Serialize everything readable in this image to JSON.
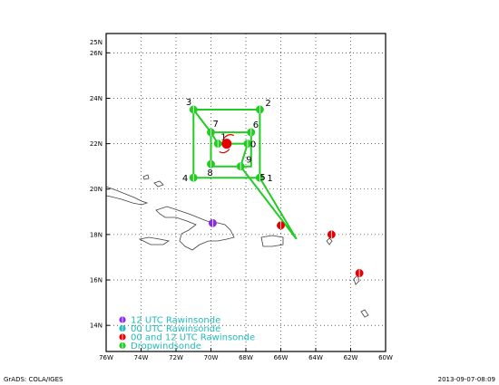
{
  "colors": {
    "frame": "#000000",
    "grid": "#000000",
    "coast": "#404040",
    "track": "#22cc22",
    "dropsonde": "#22cc22",
    "rawin_12": "#8a2be2",
    "rawin_00": "#22bbbb",
    "rawin_both": "#e60000",
    "storm_symbol": "#e60000"
  },
  "axes": {
    "x_ticks": [
      {
        "lon": -76,
        "label": "76W"
      },
      {
        "lon": -74,
        "label": "74W"
      },
      {
        "lon": -72,
        "label": "72W"
      },
      {
        "lon": -70,
        "label": "70W"
      },
      {
        "lon": -68,
        "label": "68W"
      },
      {
        "lon": -66,
        "label": "66W"
      },
      {
        "lon": -64,
        "label": "64W"
      },
      {
        "lon": -62,
        "label": "62W"
      },
      {
        "lon": -60,
        "label": "60W"
      }
    ],
    "y_ticks": [
      {
        "lat": 14,
        "label": "14N"
      },
      {
        "lat": 16,
        "label": "16N"
      },
      {
        "lat": 18,
        "label": "18N"
      },
      {
        "lat": 20,
        "label": "20N"
      },
      {
        "lat": 22,
        "label": "22N"
      },
      {
        "lat": 24,
        "label": "24N"
      },
      {
        "lat": 26,
        "label": "26N"
      }
    ],
    "y_top_label": "25N"
  },
  "dropsondes": [
    {
      "lon": -71.0,
      "lat": 23.5,
      "label": "3"
    },
    {
      "lon": -67.2,
      "lat": 23.5,
      "label": "2"
    },
    {
      "lon": -70.0,
      "lat": 22.5,
      "label": "7"
    },
    {
      "lon": -67.7,
      "lat": 22.5,
      "label": "6"
    },
    {
      "lon": -69.6,
      "lat": 22.0,
      "label": "1"
    },
    {
      "lon": -67.9,
      "lat": 22.0,
      "label": "0"
    },
    {
      "lon": -70.0,
      "lat": 21.1,
      "label": "8"
    },
    {
      "lon": -68.3,
      "lat": 21.0,
      "label": "9"
    },
    {
      "lon": -71.0,
      "lat": 20.5,
      "label": "4"
    },
    {
      "lon": -67.2,
      "lat": 20.5,
      "label": "5"
    },
    {
      "lon": -67.2,
      "lat": 20.5,
      "label": "1"
    }
  ],
  "track_path": [
    [
      -71.0,
      23.5
    ],
    [
      -67.2,
      23.5
    ],
    [
      -67.2,
      20.5
    ],
    [
      -71.0,
      20.5
    ],
    [
      -71.0,
      23.5
    ],
    [
      -70.0,
      22.5
    ],
    [
      -67.7,
      22.5
    ],
    [
      -67.7,
      21.0
    ],
    [
      -70.0,
      21.0
    ],
    [
      -70.0,
      22.5
    ],
    [
      -69.6,
      22.0
    ],
    [
      -67.9,
      22.0
    ],
    [
      -68.3,
      21.0
    ],
    [
      -65.1,
      17.8
    ],
    [
      -67.2,
      20.5
    ]
  ],
  "rawinsondes": [
    {
      "lon": -69.9,
      "lat": 18.5,
      "type": "12"
    },
    {
      "lon": -66.0,
      "lat": 18.4,
      "type": "both"
    },
    {
      "lon": -63.1,
      "lat": 18.0,
      "type": "both"
    },
    {
      "lon": -61.5,
      "lat": 16.3,
      "type": "both"
    }
  ],
  "storm": {
    "lon": -69.1,
    "lat": 22.0
  },
  "legend": [
    {
      "key": "rawin_12",
      "text": "12 UTC Rawinsonde"
    },
    {
      "key": "rawin_00",
      "text": "00 UTC Rawinsonde"
    },
    {
      "key": "rawin_both",
      "text": "00 and 12 UTC Rawinsonde"
    },
    {
      "key": "dropsonde",
      "text": "Dropwindsonde"
    }
  ],
  "footer": {
    "left": "GrADS: COLA/IGES",
    "right": "2013-09-07-08:09"
  }
}
